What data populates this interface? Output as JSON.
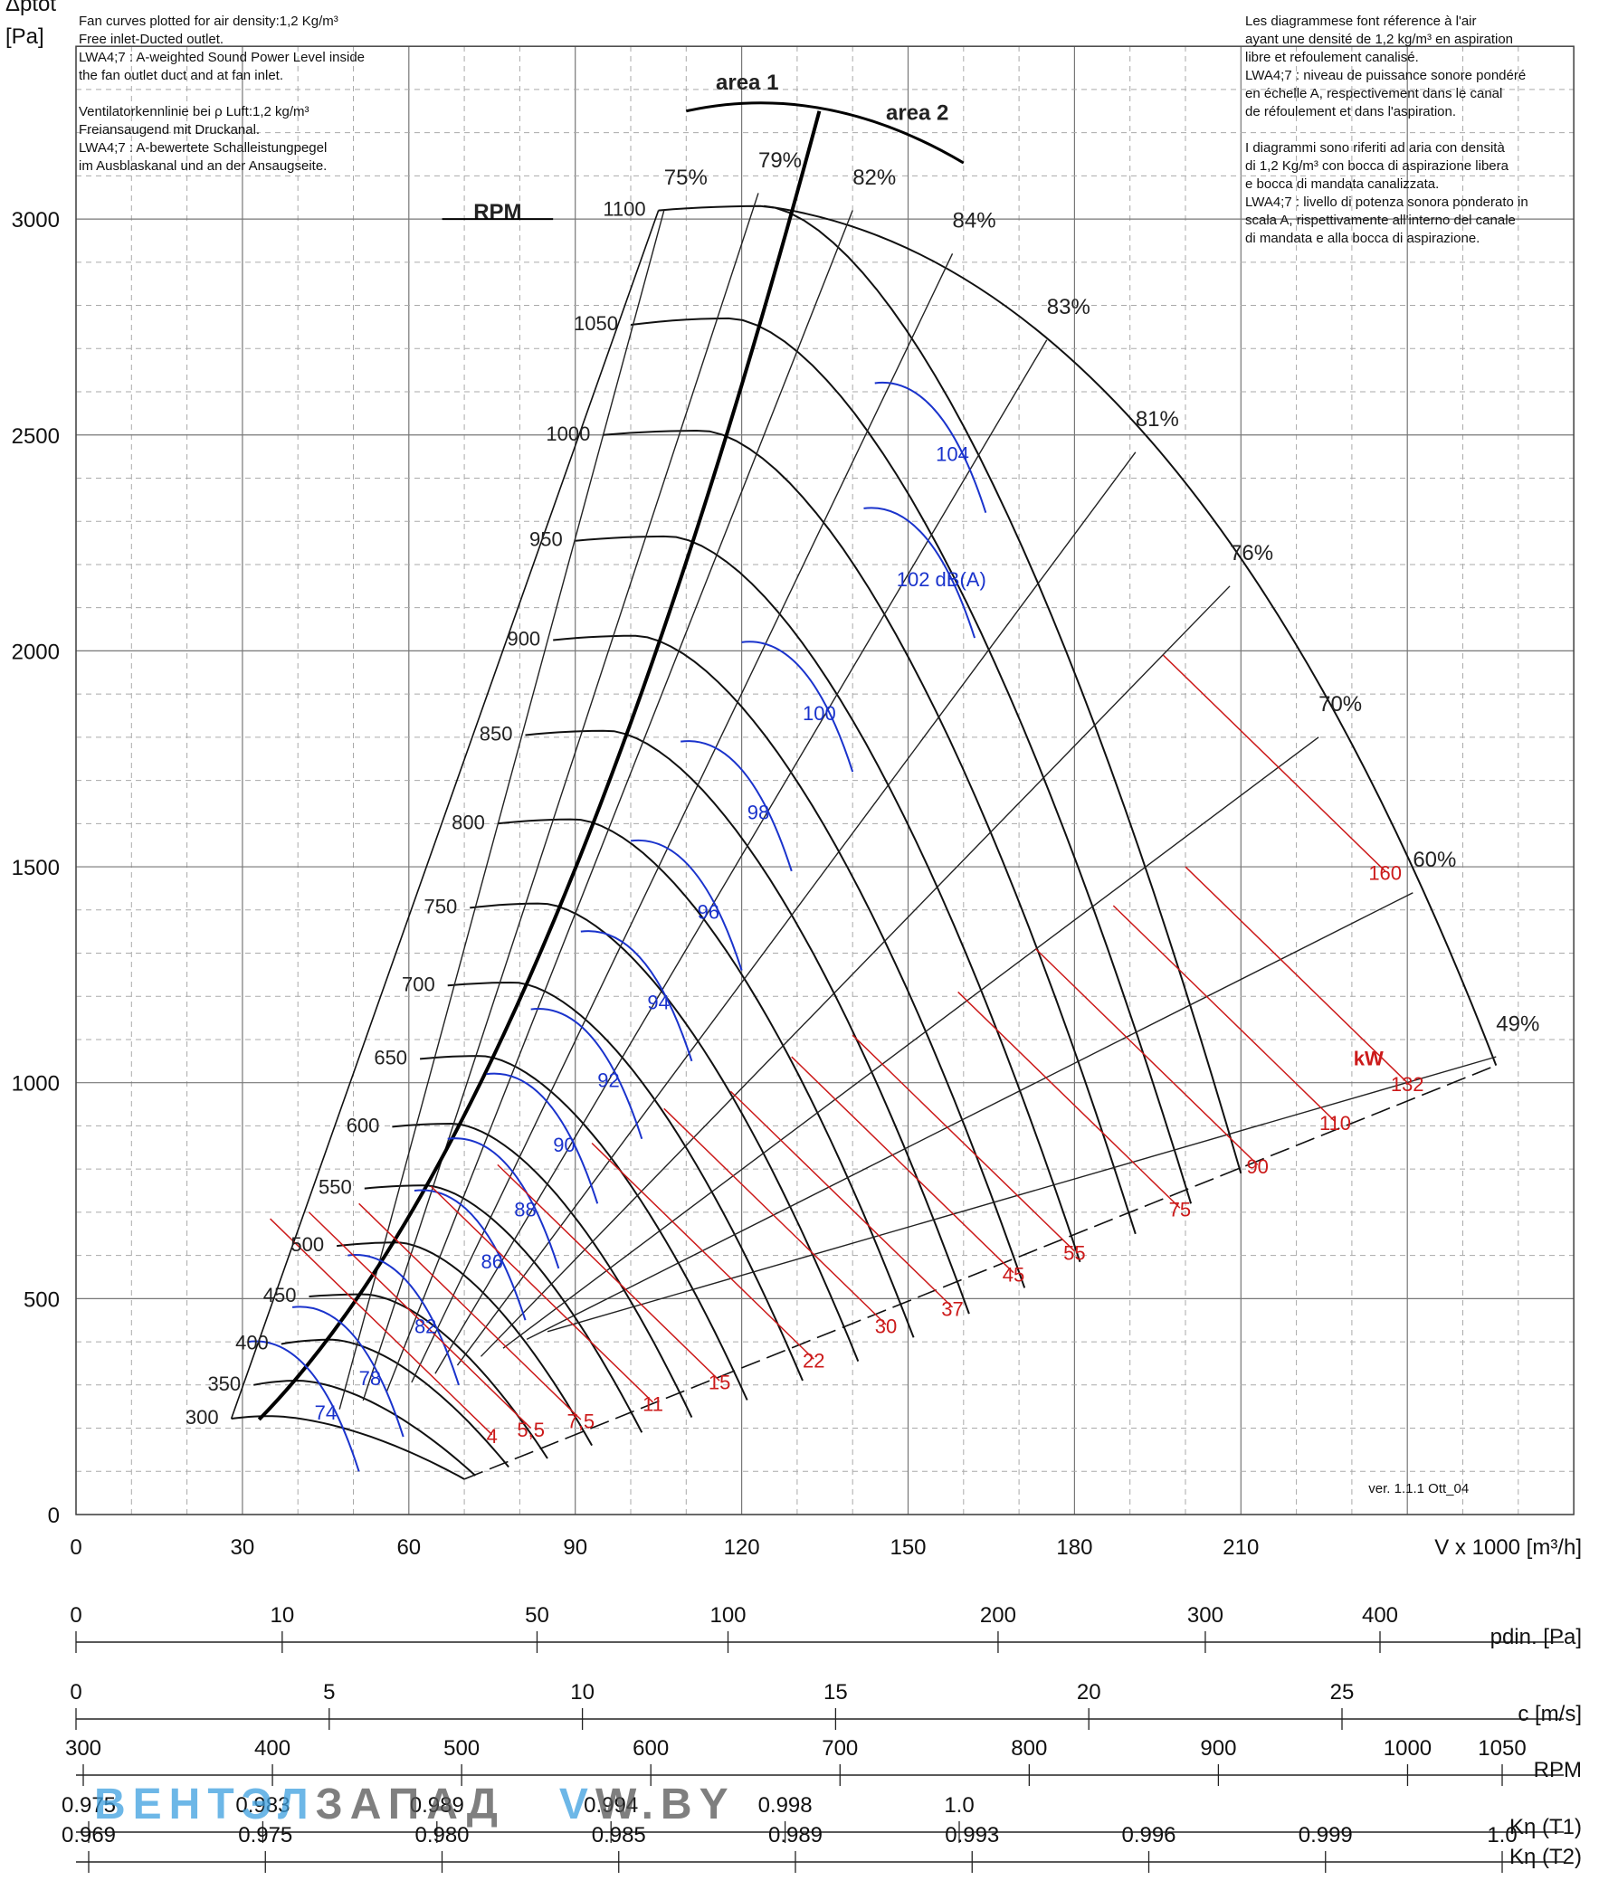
{
  "notes_left": [
    "Fan curves plotted for air density:1,2 Kg/m³",
    "Free inlet-Ducted outlet.",
    "LWA4;7 : A-weighted Sound Power Level inside",
    "the fan outlet duct and at fan inlet.",
    "",
    "Ventilatorkennlinie bei ρ Luft:1,2 kg/m³",
    "Freiansaugend mit Druckanal.",
    "LWA4;7 : A-bewertete Schalleistungpegel",
    "im Ausblaskanal und an der Ansaugseite."
  ],
  "notes_right": [
    "Les diagrammese font réference à l'air",
    "ayant une densité de 1,2 kg/m³ en aspiration",
    "libre et refoulement canalisé.",
    "LWA4;7 : niveau de puissance sonore pondéré",
    "en échelle A, respectivement dans le canal",
    "de réfoulement et dans l'aspiration.",
    "",
    "I diagrammi sono riferiti ad aria con densità",
    "di 1,2 Kg/m³ con bocca di aspirazione libera",
    "e bocca di mandata canalizzata.",
    "LWA4;7 : livello di potenza sonora ponderato in",
    "scala A, rispettivamente all'interno del canale",
    "di mandata e alla bocca di aspirazione."
  ],
  "version": "ver. 1.1.1 Ott_04",
  "watermark": {
    "part1": "ВЕНТ",
    "part2": "ЭЛ",
    "part3": "ЗАПАД",
    "part4": "V",
    "part5": "W.BY"
  },
  "colors": {
    "rpm_curve": "#111111",
    "sound_curve": "#1a33cc",
    "power_line": "#cc1a1a",
    "grid": "#888888"
  },
  "chart_data": {
    "type": "line",
    "ylabel": "Δptot [Pa]",
    "xlabel": "V x 1000 [m³/h]",
    "xlim": [
      0,
      270
    ],
    "ylim": [
      0,
      3400
    ],
    "x_ticks": [
      0,
      30,
      60,
      90,
      120,
      150,
      180,
      210
    ],
    "y_ticks": [
      0,
      500,
      1000,
      1500,
      2000,
      2500,
      3000
    ],
    "grid": true,
    "rpm_title": "RPM",
    "area_labels": [
      "area 1",
      "area 2"
    ],
    "rpm_curves": [
      {
        "rpm": "300",
        "start": [
          28,
          222
        ],
        "peak_x": 35,
        "peak_y": 228,
        "end": [
          70,
          82
        ]
      },
      {
        "rpm": "350",
        "start": [
          32,
          300
        ],
        "peak_x": 40,
        "peak_y": 310,
        "end": [
          72,
          90
        ]
      },
      {
        "rpm": "400",
        "start": [
          37,
          395
        ],
        "peak_x": 46,
        "peak_y": 405,
        "end": [
          78,
          110
        ]
      },
      {
        "rpm": "450",
        "start": [
          42,
          505
        ],
        "peak_x": 52,
        "peak_y": 510,
        "end": [
          85,
          130
        ]
      },
      {
        "rpm": "500",
        "start": [
          47,
          622
        ],
        "peak_x": 58,
        "peak_y": 630,
        "end": [
          93,
          160
        ]
      },
      {
        "rpm": "550",
        "start": [
          52,
          755
        ],
        "peak_x": 63,
        "peak_y": 762,
        "end": [
          102,
          190
        ]
      },
      {
        "rpm": "600",
        "start": [
          57,
          898
        ],
        "peak_x": 68,
        "peak_y": 905,
        "end": [
          111,
          225
        ]
      },
      {
        "rpm": "650",
        "start": [
          62,
          1055
        ],
        "peak_x": 73,
        "peak_y": 1062,
        "end": [
          121,
          265
        ]
      },
      {
        "rpm": "700",
        "start": [
          67,
          1225
        ],
        "peak_x": 79,
        "peak_y": 1232,
        "end": [
          131,
          310
        ]
      },
      {
        "rpm": "750",
        "start": [
          71,
          1405
        ],
        "peak_x": 84,
        "peak_y": 1415,
        "end": [
          141,
          355
        ]
      },
      {
        "rpm": "800",
        "start": [
          76,
          1600
        ],
        "peak_x": 90,
        "peak_y": 1610,
        "end": [
          151,
          410
        ]
      },
      {
        "rpm": "850",
        "start": [
          81,
          1805
        ],
        "peak_x": 96,
        "peak_y": 1815,
        "end": [
          161,
          465
        ]
      },
      {
        "rpm": "900",
        "start": [
          86,
          2025
        ],
        "peak_x": 101,
        "peak_y": 2035,
        "end": [
          171,
          525
        ]
      },
      {
        "rpm": "950",
        "start": [
          90,
          2255
        ],
        "peak_x": 107,
        "peak_y": 2265,
        "end": [
          181,
          585
        ]
      },
      {
        "rpm": "1000",
        "start": [
          95,
          2500
        ],
        "peak_x": 113,
        "peak_y": 2510,
        "end": [
          191,
          650
        ]
      },
      {
        "rpm": "1050",
        "start": [
          100,
          2755
        ],
        "peak_x": 118,
        "peak_y": 2770,
        "end": [
          201,
          720
        ]
      },
      {
        "rpm": "1100",
        "start": [
          105,
          3020
        ],
        "peak_x": 124,
        "peak_y": 3030,
        "end": [
          210,
          790
        ]
      }
    ],
    "efficiency_labels": [
      {
        "label": "75%",
        "x": 106,
        "y": 3080
      },
      {
        "label": "79%",
        "x": 123,
        "y": 3120
      },
      {
        "label": "82%",
        "x": 140,
        "y": 3080
      },
      {
        "label": "84%",
        "x": 158,
        "y": 2980
      },
      {
        "label": "83%",
        "x": 175,
        "y": 2780
      },
      {
        "label": "81%",
        "x": 191,
        "y": 2520
      },
      {
        "label": "76%",
        "x": 208,
        "y": 2210
      },
      {
        "label": "70%",
        "x": 224,
        "y": 1860
      },
      {
        "label": "60%",
        "x": 241,
        "y": 1500
      },
      {
        "label": "49%",
        "x": 256,
        "y": 1120
      }
    ],
    "sound_labels": [
      {
        "label": "74",
        "x": 45,
        "y": 220
      },
      {
        "label": "78",
        "x": 53,
        "y": 300
      },
      {
        "label": "82",
        "x": 63,
        "y": 420
      },
      {
        "label": "86",
        "x": 75,
        "y": 570
      },
      {
        "label": "88",
        "x": 81,
        "y": 690
      },
      {
        "label": "90",
        "x": 88,
        "y": 840
      },
      {
        "label": "92",
        "x": 96,
        "y": 990
      },
      {
        "label": "94",
        "x": 105,
        "y": 1170
      },
      {
        "label": "96",
        "x": 114,
        "y": 1380
      },
      {
        "label": "98",
        "x": 123,
        "y": 1610
      },
      {
        "label": "100",
        "x": 134,
        "y": 1840
      },
      {
        "label": "102 dB(A)",
        "x": 156,
        "y": 2150
      },
      {
        "label": "104",
        "x": 158,
        "y": 2440
      }
    ],
    "power_labels": [
      {
        "label": "4",
        "x": 75,
        "y": 165
      },
      {
        "label": "5,5",
        "x": 82,
        "y": 180
      },
      {
        "label": "7,5",
        "x": 91,
        "y": 200
      },
      {
        "label": "11",
        "x": 104,
        "y": 240
      },
      {
        "label": "15",
        "x": 116,
        "y": 290
      },
      {
        "label": "22",
        "x": 133,
        "y": 340
      },
      {
        "label": "30",
        "x": 146,
        "y": 420
      },
      {
        "label": "37",
        "x": 158,
        "y": 460
      },
      {
        "label": "45",
        "x": 169,
        "y": 540
      },
      {
        "label": "55",
        "x": 180,
        "y": 590
      },
      {
        "label": "75",
        "x": 199,
        "y": 690
      },
      {
        "label": "90",
        "x": 213,
        "y": 790
      },
      {
        "label": "110",
        "x": 227,
        "y": 890
      },
      {
        "label": "132",
        "x": 240,
        "y": 980
      },
      {
        "label": "160",
        "x": 236,
        "y": 1470
      }
    ],
    "power_unit": "kW",
    "bottom_scales": {
      "pdin": {
        "label": "pdin. [Pa]",
        "ticks": [
          0,
          10,
          50,
          100,
          200,
          300,
          400
        ]
      },
      "c": {
        "label": "c [m/s]",
        "ticks": [
          0,
          5,
          10,
          15,
          20,
          25
        ]
      },
      "rpm": {
        "label": "RPM",
        "ticks": [
          300,
          400,
          500,
          600,
          700,
          800,
          900,
          1000,
          1050
        ]
      },
      "k_t1": {
        "label": "Kη (T1)",
        "ticks": [
          "0.975",
          "0.983",
          "0.989",
          "0.994",
          "0.998",
          "1.0"
        ]
      },
      "k_t2": {
        "label": "Kη (T2)",
        "ticks": [
          "0.969",
          "0.975",
          "0.980",
          "0.985",
          "0.989",
          "0.993",
          "0.996",
          "0.999",
          "1.0"
        ]
      }
    }
  }
}
